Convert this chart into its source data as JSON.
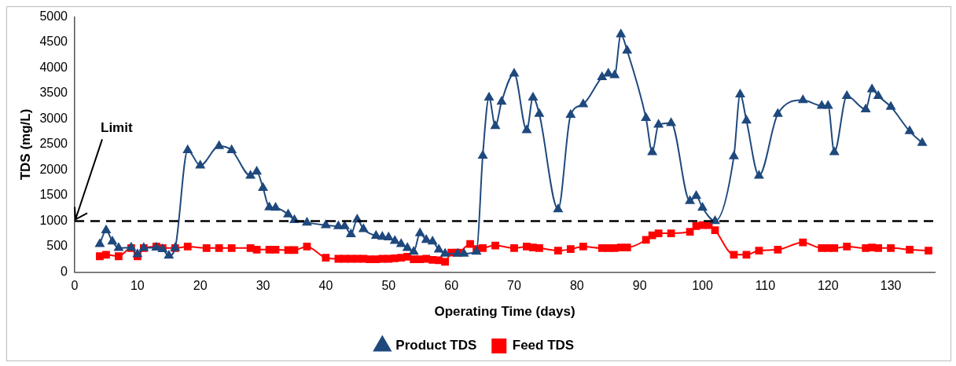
{
  "chart_data": {
    "type": "line",
    "xlabel": "Operating Time (days)",
    "ylabel": "TDS (mg/L)",
    "xlim": [
      0,
      137
    ],
    "xticks": [
      0,
      10,
      20,
      30,
      40,
      50,
      60,
      70,
      80,
      90,
      100,
      110,
      120,
      130
    ],
    "ylim": [
      0,
      5000
    ],
    "yticks": [
      0,
      500,
      1000,
      1500,
      2000,
      2500,
      3000,
      3500,
      4000,
      4500,
      5000
    ],
    "grid": false,
    "legend": "bottom",
    "ref_lines": [
      {
        "axis": "y",
        "value": 1000,
        "label": "Limit",
        "color": "#000000",
        "line_style": "dashed"
      }
    ],
    "series": [
      {
        "name": "Feed TDS",
        "color": "#ff0000",
        "marker": "square",
        "x": [
          4,
          5,
          7,
          9,
          10,
          11,
          13,
          14,
          16,
          18,
          21,
          23,
          25,
          28,
          29,
          31,
          32,
          34,
          35,
          37,
          40,
          42,
          43,
          44,
          45,
          46,
          47,
          48,
          49,
          50,
          51,
          52,
          53,
          54,
          55,
          56,
          57,
          58,
          59,
          60,
          61,
          63,
          64,
          65,
          67,
          70,
          72,
          73,
          74,
          77,
          79,
          81,
          84,
          85,
          86,
          87,
          88,
          91,
          92,
          93,
          95,
          98,
          99,
          100,
          101,
          102,
          105,
          107,
          109,
          112,
          116,
          119,
          120,
          121,
          123,
          126,
          127,
          128,
          130,
          133,
          136
        ],
        "values": [
          310,
          340,
          310,
          470,
          310,
          470,
          500,
          470,
          470,
          500,
          470,
          470,
          470,
          470,
          440,
          440,
          440,
          430,
          430,
          500,
          280,
          260,
          260,
          260,
          260,
          260,
          250,
          250,
          260,
          260,
          270,
          280,
          300,
          250,
          250,
          260,
          240,
          230,
          200,
          380,
          380,
          550,
          450,
          470,
          520,
          470,
          500,
          480,
          470,
          420,
          450,
          500,
          470,
          470,
          470,
          480,
          480,
          630,
          720,
          760,
          760,
          790,
          900,
          920,
          920,
          820,
          340,
          340,
          420,
          440,
          580,
          470,
          470,
          470,
          500,
          470,
          480,
          470,
          470,
          440,
          420
        ]
      },
      {
        "name": "Product TDS",
        "color": "#1f497d",
        "marker": "triangle",
        "x": [
          4,
          5,
          6,
          7,
          9,
          10,
          11,
          13,
          14,
          15,
          16,
          18,
          20,
          23,
          25,
          28,
          29,
          30,
          31,
          32,
          34,
          35,
          37,
          40,
          42,
          43,
          44,
          45,
          46,
          48,
          49,
          50,
          51,
          52,
          53,
          54,
          55,
          56,
          57,
          58,
          59,
          61,
          62,
          64,
          65,
          66,
          67,
          68,
          70,
          72,
          73,
          74,
          77,
          79,
          81,
          84,
          85,
          86,
          87,
          88,
          91,
          92,
          93,
          95,
          98,
          99,
          100,
          102,
          105,
          106,
          107,
          109,
          112,
          116,
          119,
          120,
          121,
          123,
          126,
          127,
          128,
          130,
          133,
          135
        ],
        "values": [
          550,
          820,
          600,
          470,
          480,
          350,
          470,
          480,
          450,
          320,
          470,
          2390,
          2090,
          2470,
          2390,
          1890,
          1970,
          1650,
          1270,
          1260,
          1130,
          1020,
          970,
          920,
          900,
          900,
          740,
          1030,
          840,
          710,
          690,
          680,
          610,
          550,
          470,
          400,
          760,
          630,
          600,
          440,
          360,
          360,
          360,
          400,
          2280,
          3420,
          2860,
          3340,
          3890,
          2780,
          3420,
          3100,
          1230,
          3080,
          3290,
          3820,
          3890,
          3860,
          4660,
          4340,
          3020,
          2350,
          2890,
          2920,
          1390,
          1490,
          1260,
          1000,
          2270,
          3480,
          2970,
          1890,
          3100,
          3370,
          3260,
          3260,
          2350,
          3450,
          3190,
          3580,
          3450,
          3240,
          2760,
          2530
        ]
      }
    ]
  }
}
